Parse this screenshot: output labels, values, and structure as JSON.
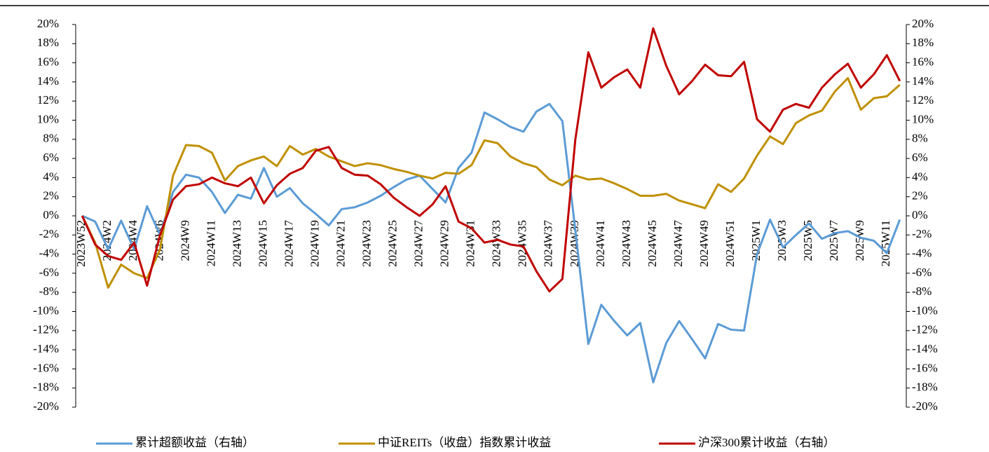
{
  "chart_data": {
    "type": "line",
    "categories": [
      "2023W52",
      null,
      "2024W2",
      null,
      "2024W4",
      null,
      "2024W6",
      null,
      "2024W9",
      null,
      "2024W11",
      null,
      "2024W13",
      null,
      "2024W15",
      null,
      "2024W17",
      null,
      "2024W19",
      null,
      "2024W21",
      null,
      "2024W23",
      null,
      "2024W25",
      null,
      "2024W27",
      null,
      "2024W29",
      null,
      "2024W31",
      null,
      "2024W33",
      null,
      "2024W35",
      null,
      "2024W37",
      null,
      "2024W39",
      null,
      "2024W41",
      null,
      "2024W43",
      null,
      "2024W45",
      null,
      "2024W47",
      null,
      "2024W49",
      null,
      "2024W51",
      null,
      "2025W1",
      null,
      "2025W3",
      null,
      "2025W5",
      null,
      "2025W7",
      null,
      "2025W9",
      null,
      "2025W11",
      null
    ],
    "series": [
      {
        "name": "累计超额收益（右轴）",
        "color": "#5b9bd5",
        "axis": "y2",
        "values": [
          0,
          -0.6,
          -3.5,
          -0.5,
          -3.5,
          1.0,
          -2.0,
          2.5,
          4.3,
          4.0,
          2.5,
          0.3,
          2.2,
          1.8,
          5.0,
          2.0,
          2.9,
          1.3,
          0.2,
          -1.0,
          0.7,
          0.9,
          1.4,
          2.1,
          3.0,
          3.8,
          4.2,
          2.8,
          1.4,
          5.0,
          6.6,
          10.8,
          10.1,
          9.3,
          8.8,
          10.9,
          11.7,
          9.9,
          -1.5,
          -13.4,
          -9.3,
          -11.0,
          -12.5,
          -11.2,
          -17.4,
          -13.3,
          -11.0,
          -12.9,
          -14.9,
          -11.3,
          -11.9,
          -12.0,
          -4.0,
          -0.4,
          -3.3,
          -2.0,
          -0.8,
          -2.4,
          -1.8,
          -1.6,
          -2.3,
          -2.6,
          -3.9,
          -0.4
        ]
      },
      {
        "name": "中证REITs（收盘）指数累计收益",
        "color": "#bf9000",
        "values": [
          0,
          -2.8,
          -7.5,
          -5.1,
          -6.0,
          -6.5,
          -3.5,
          4.2,
          7.4,
          7.3,
          6.6,
          3.7,
          5.2,
          5.8,
          6.2,
          5.2,
          7.3,
          6.4,
          7.0,
          6.2,
          5.7,
          5.2,
          5.5,
          5.3,
          4.9,
          4.6,
          4.2,
          3.9,
          4.5,
          4.4,
          5.3,
          7.9,
          7.6,
          6.2,
          5.5,
          5.1,
          3.8,
          3.2,
          4.2,
          3.8,
          3.9,
          3.4,
          2.8,
          2.1,
          2.1,
          2.3,
          1.6,
          1.2,
          0.8,
          3.3,
          2.5,
          3.9,
          6.3,
          8.3,
          7.5,
          9.7,
          10.5,
          11.0,
          13.0,
          14.4,
          11.1,
          12.3,
          12.5,
          13.7
        ]
      },
      {
        "name": "沪深300累计收益（右轴）",
        "color": "#c00000",
        "axis": "y2",
        "values": [
          0,
          -3.0,
          -4.2,
          -4.6,
          -2.8,
          -7.3,
          -2.0,
          1.7,
          3.1,
          3.3,
          4.0,
          3.4,
          3.1,
          4.0,
          1.3,
          3.2,
          4.4,
          5.0,
          6.8,
          7.2,
          5.0,
          4.3,
          4.2,
          3.3,
          1.9,
          0.9,
          0.0,
          1.2,
          3.1,
          -0.6,
          -1.3,
          -2.8,
          -2.5,
          -3.0,
          -3.2,
          -5.8,
          -7.9,
          -6.6,
          8.0,
          17.1,
          13.4,
          14.5,
          15.3,
          13.4,
          19.6,
          15.7,
          12.7,
          14.1,
          15.8,
          14.7,
          14.6,
          16.1,
          10.1,
          8.8,
          11.1,
          11.7,
          11.3,
          13.4,
          14.8,
          15.9,
          13.4,
          14.8,
          16.8,
          14.1
        ]
      }
    ],
    "ylim": [
      -20,
      20
    ],
    "yticks": [
      {
        "value": -20,
        "label": "-20%"
      },
      {
        "value": -18,
        "label": "-18%"
      },
      {
        "value": -16,
        "label": "-16%"
      },
      {
        "value": -14,
        "label": "-14%"
      },
      {
        "value": -12,
        "label": "-12%"
      },
      {
        "value": -10,
        "label": "-10%"
      },
      {
        "value": -8,
        "label": "-8%"
      },
      {
        "value": -6,
        "label": "-6%"
      },
      {
        "value": -4,
        "label": "-4%"
      },
      {
        "value": -2,
        "label": "-2%"
      },
      {
        "value": 0,
        "label": "0%"
      },
      {
        "value": 2,
        "label": "2%"
      },
      {
        "value": 4,
        "label": "4%"
      },
      {
        "value": 6,
        "label": "6%"
      },
      {
        "value": 8,
        "label": "8%"
      },
      {
        "value": 10,
        "label": "10%"
      },
      {
        "value": 12,
        "label": "12%"
      },
      {
        "value": 14,
        "label": "14%"
      },
      {
        "value": 16,
        "label": "16%"
      },
      {
        "value": 18,
        "label": "18%"
      },
      {
        "value": 20,
        "label": "20%"
      }
    ],
    "y2lim": [
      -20,
      20
    ],
    "y2ticks": [
      {
        "value": -20,
        "label": "-20%"
      },
      {
        "value": -18,
        "label": "-18%"
      },
      {
        "value": -16,
        "label": "-16%"
      },
      {
        "value": -14,
        "label": "-14%"
      },
      {
        "value": -12,
        "label": "-12%"
      },
      {
        "value": -10,
        "label": "-10%"
      },
      {
        "value": -8,
        "label": "-8%"
      },
      {
        "value": -6,
        "label": "-6%"
      },
      {
        "value": -4,
        "label": "-4%"
      },
      {
        "value": -2,
        "label": "-2%"
      },
      {
        "value": 0,
        "label": "0%"
      },
      {
        "value": 2,
        "label": "2%"
      },
      {
        "value": 4,
        "label": "4%"
      },
      {
        "value": 6,
        "label": "6%"
      },
      {
        "value": 8,
        "label": "8%"
      },
      {
        "value": 10,
        "label": "10%"
      },
      {
        "value": 12,
        "label": "12%"
      },
      {
        "value": 14,
        "label": "14%"
      },
      {
        "value": 16,
        "label": "16%"
      },
      {
        "value": 18,
        "label": "18%"
      },
      {
        "value": 20,
        "label": "20%"
      }
    ],
    "legend": "bottom",
    "grid": false
  }
}
